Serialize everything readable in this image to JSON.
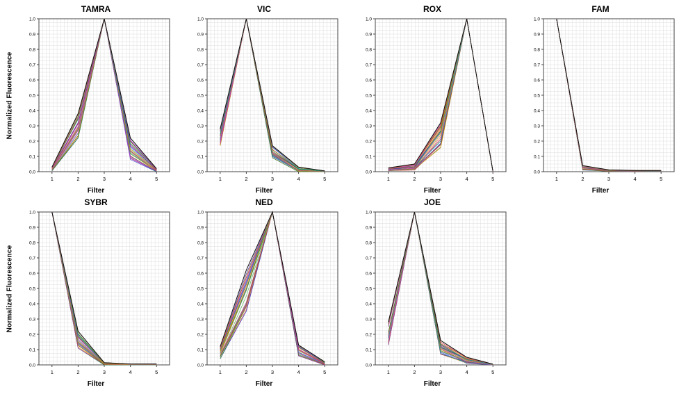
{
  "figure": {
    "description": "Pure dye spectral calibration plots",
    "background": "#ffffff",
    "grid_color": "#dedede",
    "border_color": "#444444",
    "envelope_line_color": "#111111"
  },
  "axis": {
    "ylabel": "Normalized Fluorescence",
    "xlabel": "Filter",
    "yticks": [
      "0.0",
      "0.1",
      "0.2",
      "0.3",
      "0.4",
      "0.5",
      "0.6",
      "0.7",
      "0.8",
      "0.9",
      "1.0"
    ],
    "xticks": [
      "1",
      "2",
      "3",
      "4",
      "5"
    ],
    "ylim": [
      0,
      1
    ],
    "grid": true,
    "legend": "none"
  },
  "replicates": 30,
  "palette": [
    "#cc2222",
    "#2233cc",
    "#119922",
    "#ee8800",
    "#aa22aa",
    "#00a0a0",
    "#888800",
    "#ee44aa",
    "#6644ee",
    "#995511",
    "#44aa44",
    "#dd5555",
    "#4477dd",
    "#dd8844",
    "#8844dd",
    "#777777",
    "#b0b000",
    "#cc7799"
  ],
  "chart_data": [
    {
      "type": "line",
      "title": "TAMRA",
      "row": 0,
      "peak_filter": 3,
      "x": [
        1,
        2,
        3,
        4,
        5
      ],
      "band_min": [
        0.005,
        0.22,
        1.0,
        0.08,
        0.0
      ],
      "band_max": [
        0.03,
        0.38,
        1.0,
        0.22,
        0.02
      ]
    },
    {
      "type": "line",
      "title": "VIC",
      "row": 0,
      "peak_filter": 2,
      "x": [
        1,
        2,
        3,
        4,
        5
      ],
      "band_min": [
        0.17,
        1.0,
        0.09,
        0.0,
        0.0
      ],
      "band_max": [
        0.28,
        1.0,
        0.17,
        0.03,
        0.005
      ]
    },
    {
      "type": "line",
      "title": "ROX",
      "row": 0,
      "peak_filter": 4,
      "x": [
        1,
        2,
        3,
        4,
        5
      ],
      "band_min": [
        0.005,
        0.01,
        0.15,
        1.0,
        0.0
      ],
      "band_max": [
        0.025,
        0.05,
        0.32,
        1.0,
        0.005
      ]
    },
    {
      "type": "line",
      "title": "FAM",
      "row": 0,
      "peak_filter": 1,
      "x": [
        1,
        2,
        3,
        4,
        5
      ],
      "band_min": [
        1.0,
        0.01,
        0.002,
        0.002,
        0.002
      ],
      "band_max": [
        1.0,
        0.04,
        0.012,
        0.008,
        0.008
      ]
    },
    {
      "type": "line",
      "title": "SYBR",
      "row": 1,
      "peak_filter": 1,
      "x": [
        1,
        2,
        3,
        4,
        5
      ],
      "band_min": [
        1.0,
        0.11,
        0.0,
        0.0,
        0.0
      ],
      "band_max": [
        1.0,
        0.22,
        0.015,
        0.006,
        0.006
      ]
    },
    {
      "type": "line",
      "title": "NED",
      "row": 1,
      "peak_filter": 3,
      "x": [
        1,
        2,
        3,
        4,
        5
      ],
      "band_min": [
        0.04,
        0.35,
        1.0,
        0.06,
        0.0
      ],
      "band_max": [
        0.12,
        0.62,
        1.0,
        0.13,
        0.02
      ]
    },
    {
      "type": "line",
      "title": "JOE",
      "row": 1,
      "peak_filter": 2,
      "x": [
        1,
        2,
        3,
        4,
        5
      ],
      "band_min": [
        0.13,
        1.0,
        0.07,
        0.01,
        0.0
      ],
      "band_max": [
        0.28,
        1.0,
        0.16,
        0.05,
        0.005
      ]
    }
  ]
}
